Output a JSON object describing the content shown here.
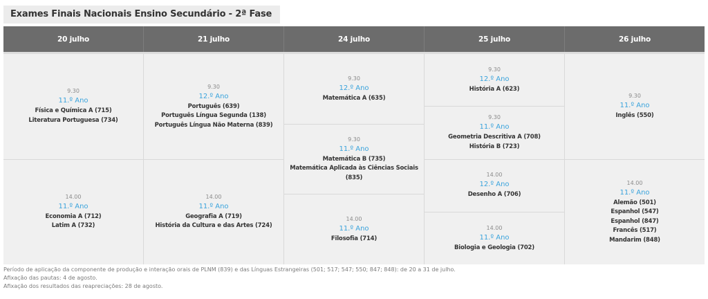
{
  "title": "Exames Finais Nacionais Ensino Secundário - 2ª Fase",
  "days": [
    {
      "label": "20 julho",
      "blocks": [
        {
          "time": "9.30",
          "year": "11.º Ano",
          "exams": [
            "Física e Química A (715)",
            "Literatura Portuguesa (734)"
          ]
        },
        {
          "time": "14.00",
          "year": "11.º Ano",
          "exams": [
            "Economia A (712)",
            "Latim A (732)"
          ]
        }
      ]
    },
    {
      "label": "21 julho",
      "blocks": [
        {
          "time": "9.30",
          "year": "12.º Ano",
          "exams": [
            "Português (639)",
            "Português Língua Segunda (138)",
            "Português Língua Não Materna (839)"
          ]
        },
        {
          "time": "14.00",
          "year": "11.º Ano",
          "exams": [
            "Geografia A (719)",
            "História da Cultura e das Artes (724)"
          ]
        }
      ]
    },
    {
      "label": "24 julho",
      "blocks": [
        {
          "time": "9.30",
          "year": "12.º Ano",
          "exams": [
            "Matemática A (635)"
          ]
        },
        {
          "time": "9.30",
          "year": "11.º Ano",
          "exams": [
            "Matemática B (735)",
            "Matemática Aplicada às Ciências Sociais",
            "(835)"
          ]
        },
        {
          "time": "14.00",
          "year": "11.º Ano",
          "exams": [
            "Filosofia (714)"
          ]
        }
      ]
    },
    {
      "label": "25 julho",
      "blocks": [
        {
          "time": "9.30",
          "year": "12.º Ano",
          "exams": [
            "História A (623)"
          ]
        },
        {
          "time": "9.30",
          "year": "11.º Ano",
          "exams": [
            "Geometria Descritiva A (708)",
            "História B (723)"
          ]
        },
        {
          "time": "14.00",
          "year": "12.º Ano",
          "exams": [
            "Desenho A (706)"
          ]
        },
        {
          "time": "14.00",
          "year": "11.º Ano",
          "exams": [
            "Biologia e Geologia (702)"
          ]
        }
      ]
    },
    {
      "label": "26 julho",
      "blocks": [
        {
          "time": "9.30",
          "year": "11.º Ano",
          "exams": [
            "Inglês (550)"
          ]
        },
        {
          "time": "14.00",
          "year": "11.º Ano",
          "exams": [
            "Alemão (501)",
            "Espanhol (547)",
            "Espanhol (847)",
            "Francês (517)",
            "Mandarim (848)"
          ]
        }
      ]
    }
  ],
  "notes": [
    "Período de aplicação da componente de produção e interação orais de PLNM (839) e das Línguas Estrangeiras (501; 517; 547; 550; 847; 848): de 20 a 31 de julho.",
    "Afixação das pautas: 4 de agosto.",
    "Afixação dos resultados das reapreciações: 28 de agosto."
  ],
  "colors": {
    "header_bg": "#6c6c6c",
    "cell_bg": "#f0f0f0",
    "year_text": "#3aa3dc"
  }
}
